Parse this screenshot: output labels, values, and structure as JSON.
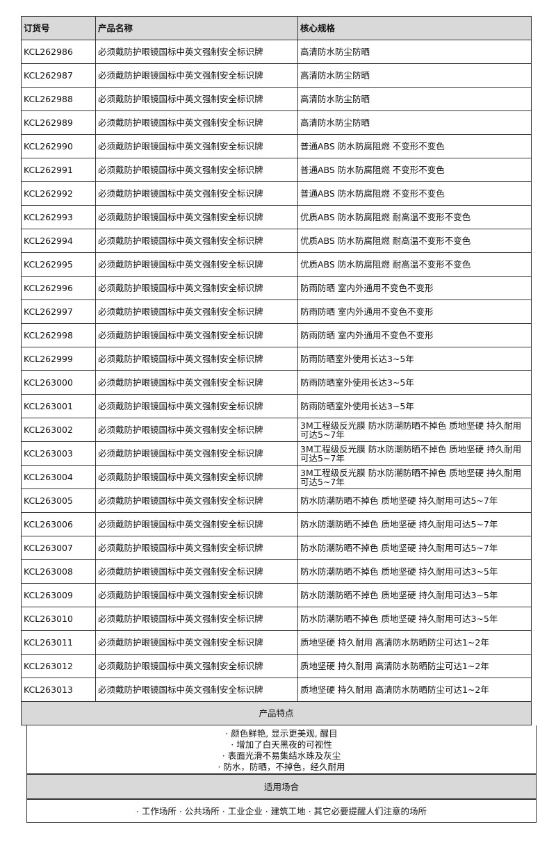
{
  "headers": [
    "订货号",
    "产品名称",
    "核心规格"
  ],
  "rows": [
    [
      "KCL262986",
      "必须戴防护眼镜国标中英文强制安全标识牌",
      "高清防水防尘防晒"
    ],
    [
      "KCL262987",
      "必须戴防护眼镜国标中英文强制安全标识牌",
      "高清防水防尘防晒"
    ],
    [
      "KCL262988",
      "必须戴防护眼镜国标中英文强制安全标识牌",
      "高清防水防尘防晒"
    ],
    [
      "KCL262989",
      "必须戴防护眼镜国标中英文强制安全标识牌",
      "高清防水防尘防晒"
    ],
    [
      "KCL262990",
      "必须戴防护眼镜国标中英文强制安全标识牌",
      "普通ABS 防水防腐阻燃 不变形不变色"
    ],
    [
      "KCL262991",
      "必须戴防护眼镜国标中英文强制安全标识牌",
      "普通ABS 防水防腐阻燃 不变形不变色"
    ],
    [
      "KCL262992",
      "必须戴防护眼镜国标中英文强制安全标识牌",
      "普通ABS 防水防腐阻燃 不变形不变色"
    ],
    [
      "KCL262993",
      "必须戴防护眼镜国标中英文强制安全标识牌",
      "优质ABS 防水防腐阻燃 耐高温不变形不变色"
    ],
    [
      "KCL262994",
      "必须戴防护眼镜国标中英文强制安全标识牌",
      "优质ABS 防水防腐阻燃 耐高温不变形不变色"
    ],
    [
      "KCL262995",
      "必须戴防护眼镜国标中英文强制安全标识牌",
      "优质ABS 防水防腐阻燃 耐高温不变形不变色"
    ],
    [
      "KCL262996",
      "必须戴防护眼镜国标中英文强制安全标识牌",
      "防雨防晒 室内外通用不变色不变形"
    ],
    [
      "KCL262997",
      "必须戴防护眼镜国标中英文强制安全标识牌",
      "防雨防晒 室内外通用不变色不变形"
    ],
    [
      "KCL262998",
      "必须戴防护眼镜国标中英文强制安全标识牌",
      "防雨防晒 室内外通用不变色不变形"
    ],
    [
      "KCL262999",
      "必须戴防护眼镜国标中英文强制安全标识牌",
      "防雨防晒室外使用长达3~5年"
    ],
    [
      "KCL263000",
      "必须戴防护眼镜国标中英文强制安全标识牌",
      "防雨防晒室外使用长达3~5年"
    ],
    [
      "KCL263001",
      "必须戴防护眼镜国标中英文强制安全标识牌",
      "防雨防晒室外使用长达3~5年"
    ],
    [
      "KCL263002",
      "必须戴防护眼镜国标中英文强制安全标识牌",
      "3M工程级反光膜 防水防潮防晒不掉色 质地坚硬 持久耐用可达5~7年"
    ],
    [
      "KCL263003",
      "必须戴防护眼镜国标中英文强制安全标识牌",
      "3M工程级反光膜 防水防潮防晒不掉色 质地坚硬 持久耐用可达5~7年"
    ],
    [
      "KCL263004",
      "必须戴防护眼镜国标中英文强制安全标识牌",
      "3M工程级反光膜 防水防潮防晒不掉色 质地坚硬 持久耐用可达5~7年"
    ],
    [
      "KCL263005",
      "必须戴防护眼镜国标中英文强制安全标识牌",
      "防水防潮防晒不掉色 质地坚硬 持久耐用可达5~7年"
    ],
    [
      "KCL263006",
      "必须戴防护眼镜国标中英文强制安全标识牌",
      "防水防潮防晒不掉色 质地坚硬 持久耐用可达5~7年"
    ],
    [
      "KCL263007",
      "必须戴防护眼镜国标中英文强制安全标识牌",
      "防水防潮防晒不掉色 质地坚硬 持久耐用可达5~7年"
    ],
    [
      "KCL263008",
      "必须戴防护眼镜国标中英文强制安全标识牌",
      "防水防潮防晒不掉色 质地坚硬 持久耐用可达3~5年"
    ],
    [
      "KCL263009",
      "必须戴防护眼镜国标中英文强制安全标识牌",
      "防水防潮防晒不掉色 质地坚硬 持久耐用可达3~5年"
    ],
    [
      "KCL263010",
      "必须戴防护眼镜国标中英文强制安全标识牌",
      "防水防潮防晒不掉色 质地坚硬 持久耐用可达3~5年"
    ],
    [
      "KCL263011",
      "必须戴防护眼镜国标中英文强制安全标识牌",
      "质地坚硬 持久耐用 高清防水防晒防尘可达1~2年"
    ],
    [
      "KCL263012",
      "必须戴防护眼镜国标中英文强制安全标识牌",
      "质地坚硬 持久耐用 高清防水防晒防尘可达1~2年"
    ],
    [
      "KCL263013",
      "必须戴防护眼镜国标中英文强制安全标识牌",
      "质地坚硬 持久耐用 高清防水防晒防尘可达1~2年"
    ]
  ],
  "features_title": "产品特点",
  "features": [
    "· 颜色鲜艳, 显示更美观, 醒目",
    "· 增加了白天黑夜的可视性",
    "· 表面光滑不易集结水珠及灰尘",
    "· 防水，防晒，不掉色，经久耐用"
  ],
  "usage_title": "适用场合",
  "usage": "· 工作场所 · 公共场所 · 工业企业 · 建筑工地 · 其它必要提醒人们注意的场所"
}
